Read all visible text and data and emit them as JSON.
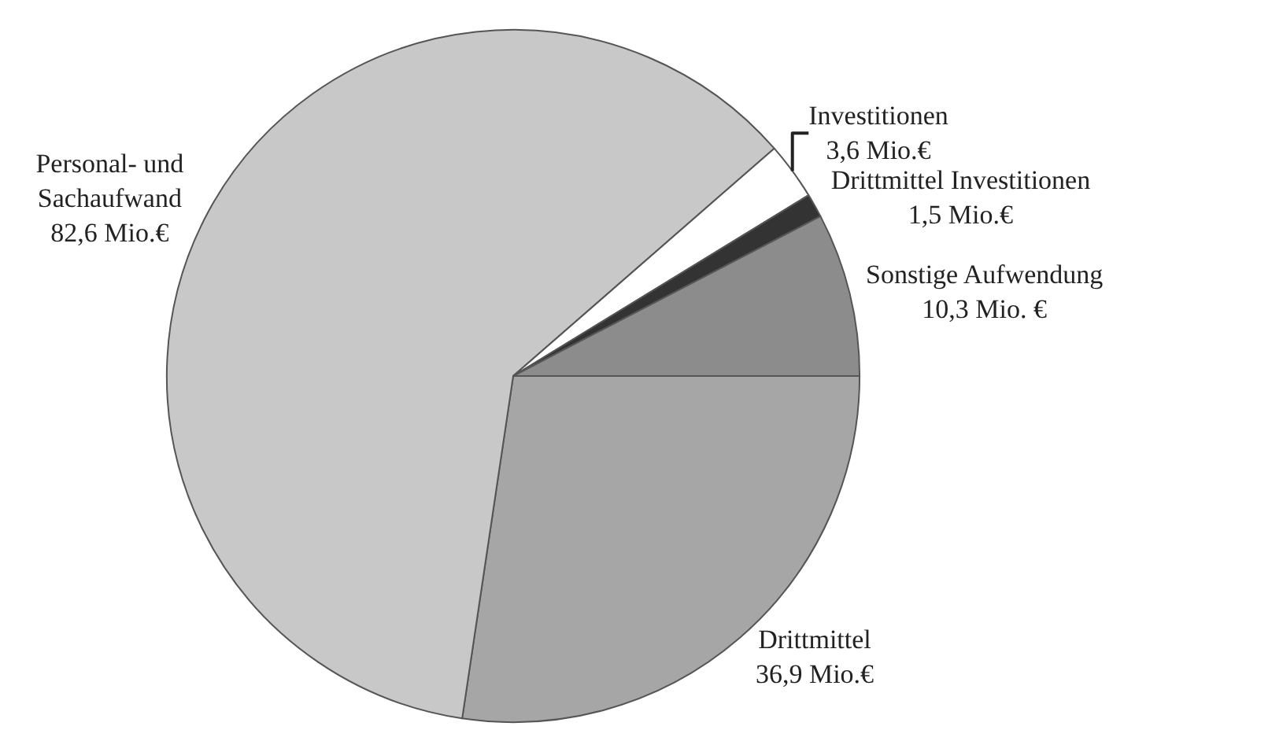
{
  "chart_data": {
    "type": "pie",
    "categories": [
      "Drittmittel",
      "Personal- und\nSachaufwand",
      "Investitionen",
      "Drittmittel Investitionen",
      "Sonstige Aufwendung"
    ],
    "values": [
      36.9,
      82.6,
      3.6,
      1.5,
      10.3
    ],
    "value_labels": [
      "36,9 Mio.€",
      "82,6 Mio.€",
      "3,6 Mio.€",
      "1,5 Mio.€",
      "10,3 Mio. €"
    ],
    "colors": [
      "#a6a6a6",
      "#c8c8c8",
      "#ffffff",
      "#333333",
      "#8c8c8c"
    ],
    "legend": false
  }
}
